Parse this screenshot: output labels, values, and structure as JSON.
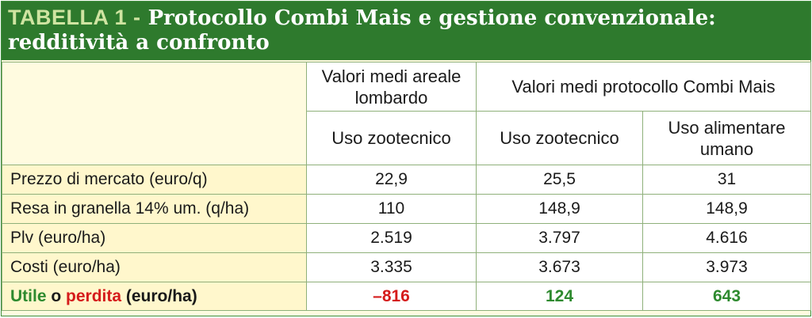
{
  "title": {
    "tag": "TABELLA 1 -",
    "line1": "Protocollo Combi Mais e gestione convenzionale:",
    "line2": "redditività a confronto"
  },
  "headers": {
    "group_areale": "Valori medi areale lombardo",
    "group_protocollo": "Valori medi protocollo Combi Mais",
    "col1": "Uso zootecnico",
    "col2": "Uso zootecnico",
    "col3": "Uso alimentare umano"
  },
  "rows": [
    {
      "label": "Prezzo di mercato (euro/q)",
      "v1": "22,9",
      "v2": "25,5",
      "v3": "31"
    },
    {
      "label": "Resa in granella 14% um. (q/ha)",
      "v1": "110",
      "v2": "148,9",
      "v3": "148,9"
    },
    {
      "label": "Plv (euro/ha)",
      "v1": "2.519",
      "v2": "3.797",
      "v3": "4.616"
    },
    {
      "label": "Costi (euro/ha)",
      "v1": "3.335",
      "v2": "3.673",
      "v3": "3.973"
    }
  ],
  "last_row": {
    "label_utile": "Utile",
    "label_o": " o ",
    "label_perdita": "perdita",
    "label_unit": " (euro/ha)",
    "v1": "–816",
    "v2": "124",
    "v3": "643"
  },
  "colors": {
    "title_bg": "#2e7a2d",
    "tag_text": "#cfe4a1",
    "label_bg": "#fff7cc",
    "positive": "#2e8a2f",
    "negative": "#d51b1b",
    "grid": "#8fb07a"
  }
}
